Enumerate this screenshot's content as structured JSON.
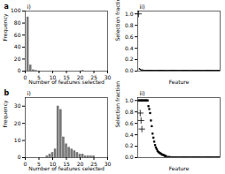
{
  "chart_data": [
    {
      "type": "bar",
      "title": "i)",
      "annotations": [
        "a"
      ],
      "xlabel": "Number of features selected",
      "ylabel": "Frequency",
      "x": [
        0,
        1,
        2,
        3,
        4,
        5,
        6,
        7,
        8,
        9,
        10,
        11,
        12,
        13,
        14,
        15,
        16,
        17,
        18,
        19,
        20,
        21,
        22,
        23,
        24,
        25,
        26,
        27,
        28,
        29
      ],
      "values": [
        0,
        90,
        10,
        2,
        1,
        0,
        0,
        0,
        0,
        0,
        0,
        0,
        0,
        0,
        0,
        0,
        0,
        0,
        0,
        0,
        0,
        1,
        0,
        0,
        0,
        0,
        0,
        0,
        0,
        0
      ],
      "color": "#777777",
      "xlim": [
        0,
        30
      ],
      "xticks": [
        0,
        5,
        10,
        15,
        20,
        25,
        30
      ],
      "ylim": [
        0,
        100
      ],
      "yticks": [
        0,
        20,
        40,
        60,
        80,
        100
      ]
    },
    {
      "type": "scatter",
      "title": "ii)",
      "xlabel": "Feature",
      "ylabel": "Selection fraction",
      "xlim": [
        0,
        100
      ],
      "ylim": [
        0.0,
        1.05
      ],
      "yticks": [
        {
          "value": 0,
          "label": "0.0"
        },
        0.2,
        0.4,
        0.6,
        0.8,
        {
          "value": 1,
          "label": "1.0"
        }
      ],
      "tick_labels": "y",
      "series": [
        {
          "marker": "plus",
          "color": "black",
          "x": [
            1
          ],
          "values": [
            1.0
          ]
        },
        {
          "marker": "circle",
          "color": "black",
          "x": [
            2,
            3,
            4,
            5,
            6,
            7,
            8,
            9,
            10,
            11,
            12,
            13,
            14,
            15,
            16,
            17,
            18,
            19,
            20,
            21,
            22,
            23,
            24,
            25,
            26,
            27,
            28,
            29,
            30,
            31,
            32,
            33,
            34,
            35,
            36,
            37,
            38,
            39,
            40,
            41,
            42,
            43,
            44,
            45,
            46,
            47,
            48,
            49,
            50,
            51,
            52,
            53,
            54,
            55,
            56,
            57,
            58,
            59,
            60,
            61,
            62,
            63,
            64,
            65,
            66,
            67,
            68,
            69,
            70,
            71,
            72,
            73,
            74,
            75,
            76,
            77,
            78,
            79,
            80,
            81,
            82,
            83,
            84,
            85,
            86,
            87,
            88,
            89,
            90,
            91,
            92,
            93,
            94,
            95,
            96,
            97,
            98,
            99,
            100
          ],
          "values": [
            0.04,
            0.03,
            0.02,
            0.02,
            0.02,
            0.01,
            0.01,
            0.01,
            0.01,
            0.01,
            0.01,
            0.01,
            0.01,
            0.01,
            0.01,
            0.01,
            0.01,
            0.01,
            0.01,
            0.01,
            0.01,
            0.01,
            0.01,
            0.01,
            0.01,
            0.01,
            0.01,
            0.01,
            0.01,
            0.01,
            0.01,
            0.01,
            0.01,
            0.01,
            0.01,
            0.01,
            0.01,
            0.01,
            0.01,
            0.01,
            0.01,
            0.01,
            0.01,
            0.01,
            0.01,
            0.01,
            0.01,
            0.01,
            0.01,
            0.01,
            0.01,
            0.01,
            0.01,
            0.01,
            0.01,
            0.01,
            0.01,
            0.01,
            0.01,
            0.01,
            0.01,
            0.01,
            0.01,
            0.01,
            0.01,
            0.01,
            0.01,
            0.01,
            0.01,
            0.01,
            0.01,
            0.01,
            0.01,
            0.01,
            0.01,
            0.01,
            0.01,
            0.01,
            0.01,
            0.01,
            0.01,
            0.01,
            0.01,
            0.01,
            0.01,
            0.01,
            0.01,
            0.01,
            0.01,
            0.01,
            0.01,
            0.01,
            0.01,
            0.01,
            0.01,
            0.01,
            0.01,
            0.01,
            0.01
          ]
        }
      ]
    },
    {
      "type": "bar",
      "title": "i)",
      "annotations": [
        "b"
      ],
      "xlabel": "Number of features selected",
      "ylabel": "Frequency",
      "x": [
        0,
        1,
        2,
        3,
        4,
        5,
        6,
        7,
        8,
        9,
        10,
        11,
        12,
        13,
        14,
        15,
        16,
        17,
        18,
        19,
        20,
        21,
        22,
        23,
        24,
        25,
        26,
        27,
        28,
        29
      ],
      "values": [
        0,
        0,
        0,
        0,
        0,
        0,
        0,
        0,
        1,
        2,
        3,
        5,
        30,
        28,
        12,
        8,
        6,
        5,
        4,
        3,
        2,
        2,
        1,
        1,
        1,
        1,
        0,
        0,
        0,
        0
      ],
      "color": "#777777",
      "xlim": [
        0,
        30
      ],
      "xticks": [
        0,
        5,
        10,
        15,
        20,
        25,
        30
      ],
      "ylim": [
        0,
        35
      ],
      "yticks": [
        0,
        10,
        20,
        30
      ]
    },
    {
      "type": "scatter",
      "title": "ii)",
      "xlabel": "Feature",
      "ylabel": "Selection fraction",
      "xlim": [
        0,
        100
      ],
      "ylim": [
        0.0,
        1.05
      ],
      "yticks": [
        {
          "value": 0,
          "label": "0.0"
        },
        0.2,
        0.4,
        0.6,
        0.8,
        {
          "value": 1,
          "label": "1.0"
        }
      ],
      "tick_labels": "y",
      "series": [
        {
          "marker": "square",
          "color": "black",
          "x": [
            1,
            2,
            3,
            4,
            5,
            6,
            7,
            8,
            9,
            10,
            11,
            12,
            13,
            14
          ],
          "values": [
            1.0,
            1.0,
            1.0,
            1.0,
            1.0,
            1.0,
            1.0,
            1.0,
            1.0,
            1.0,
            1.0,
            1.0,
            0.9,
            0.85
          ]
        },
        {
          "marker": "square",
          "color": "black",
          "x": [
            15,
            16,
            17,
            18,
            19,
            20,
            21,
            22,
            23,
            24,
            25,
            26,
            27,
            28,
            29,
            30,
            31,
            32,
            33,
            34
          ],
          "values": [
            0.78,
            0.65,
            0.55,
            0.42,
            0.35,
            0.28,
            0.22,
            0.18,
            0.15,
            0.12,
            0.1,
            0.09,
            0.08,
            0.07,
            0.06,
            0.05,
            0.05,
            0.04,
            0.03,
            0.03
          ]
        },
        {
          "marker": "circle",
          "color": "black",
          "x": [
            35,
            36,
            37,
            38,
            39,
            40,
            41,
            42,
            43,
            44,
            45,
            46,
            47,
            48,
            49,
            50,
            51,
            52,
            53,
            54,
            55,
            56,
            57,
            58,
            59,
            60,
            61,
            62,
            63,
            64,
            65,
            66,
            67,
            68,
            69,
            70,
            71,
            72,
            73,
            74,
            75,
            76,
            77,
            78,
            79,
            80,
            81,
            82,
            83,
            84,
            85,
            86,
            87,
            88,
            89,
            90,
            91,
            92,
            93,
            94,
            95,
            96,
            97,
            98,
            99,
            100
          ],
          "values": [
            0.02,
            0.02,
            0.02,
            0.02,
            0.02,
            0.01,
            0.01,
            0.01,
            0.01,
            0.01,
            0.01,
            0.01,
            0.01,
            0.01,
            0.01,
            0.01,
            0.01,
            0.01,
            0.01,
            0.01,
            0.01,
            0.01,
            0.01,
            0.01,
            0.01,
            0.01,
            0.01,
            0.01,
            0.01,
            0.01,
            0.01,
            0.01,
            0.01,
            0.01,
            0.01,
            0.01,
            0.01,
            0.01,
            0.01,
            0.01,
            0.01,
            0.01,
            0.01,
            0.01,
            0.01,
            0.01,
            0.01,
            0.01,
            0.01,
            0.01,
            0.01,
            0.01,
            0.01,
            0.01,
            0.01,
            0.01,
            0.01,
            0.01,
            0.01,
            0.01,
            0.01,
            0.01,
            0.01,
            0.01,
            0.01,
            0.01
          ]
        },
        {
          "marker": "plus",
          "color": "black",
          "x": [
            3,
            4,
            5
          ],
          "values": [
            0.78,
            0.65,
            0.5
          ]
        }
      ]
    }
  ]
}
